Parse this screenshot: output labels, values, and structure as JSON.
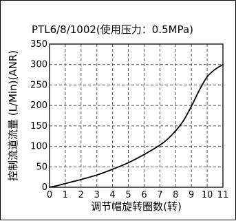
{
  "chart_data": {
    "type": "line",
    "title": "PTL6/8/1002(使用压力：0.5MPa)",
    "xlabel": "调节帽旋转圈数(转)",
    "ylabel": "控制流道流量 (L/Min)(ANR)",
    "xlim": [
      0,
      11
    ],
    "ylim": [
      0,
      350
    ],
    "x_ticks": [
      0,
      1,
      2,
      3,
      4,
      5,
      6,
      7,
      8,
      9,
      10,
      11
    ],
    "y_ticks": [
      0,
      50,
      100,
      150,
      200,
      250,
      300,
      350
    ],
    "x_tick_labels": [
      "0",
      "1",
      "2",
      "3",
      "4",
      "5",
      "6",
      "7",
      "8",
      "9",
      "10",
      "11"
    ],
    "y_tick_labels": [
      "0",
      "50",
      "100",
      "150",
      "200",
      "250",
      "300",
      "350"
    ],
    "grid": true,
    "legend": "none",
    "series": [
      {
        "x": [
          0,
          0.5,
          1,
          1.5,
          2,
          3,
          4,
          5,
          6,
          7,
          7.5,
          8,
          8.5,
          9,
          9.5,
          10,
          10.5,
          11
        ],
        "y": [
          0,
          4,
          9,
          14,
          19,
          30,
          44,
          60,
          80,
          103,
          118,
          138,
          163,
          198,
          237,
          270,
          288,
          300
        ],
        "color": "#000000"
      }
    ]
  }
}
